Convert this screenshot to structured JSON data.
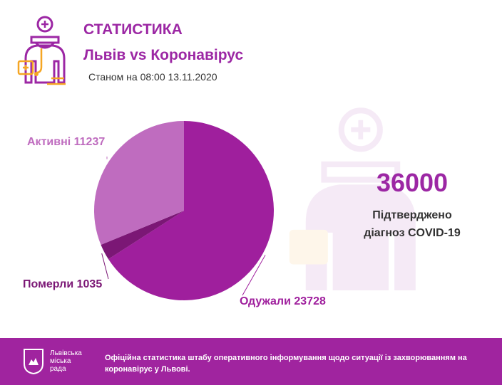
{
  "header": {
    "title": "СТАТИСТИКА",
    "subtitle": "Львів vs Коронавірус",
    "date": "Станом на 08:00 13.11.2020",
    "logo_icon": "doctor-icon"
  },
  "summary": {
    "confirmed": "36000",
    "caption_line1": "Підтверджено",
    "caption_line2": "діагноз COVID-19"
  },
  "chart_data": {
    "type": "pie",
    "slices": [
      {
        "label": "Одужали 23728",
        "value": 23728,
        "color": "#9f1f9d",
        "label_color": "#9f1f9d"
      },
      {
        "label": "Померли 1035",
        "value": 1035,
        "color": "#7b1775",
        "label_color": "#7b1775"
      },
      {
        "label": "Активні 11237",
        "value": 11237,
        "color": "#bf6cbf",
        "label_color": "#bf6cbf"
      }
    ]
  },
  "footer": {
    "org_line1": "Львівська",
    "org_line2": "міська",
    "org_line3": "рада",
    "text_line1": "Офіційна статистика штабу оперативного інформування щодо ситуації із захворюванням на",
    "text_line2": "коронавірус у Львові.",
    "background": "#a0249f"
  }
}
